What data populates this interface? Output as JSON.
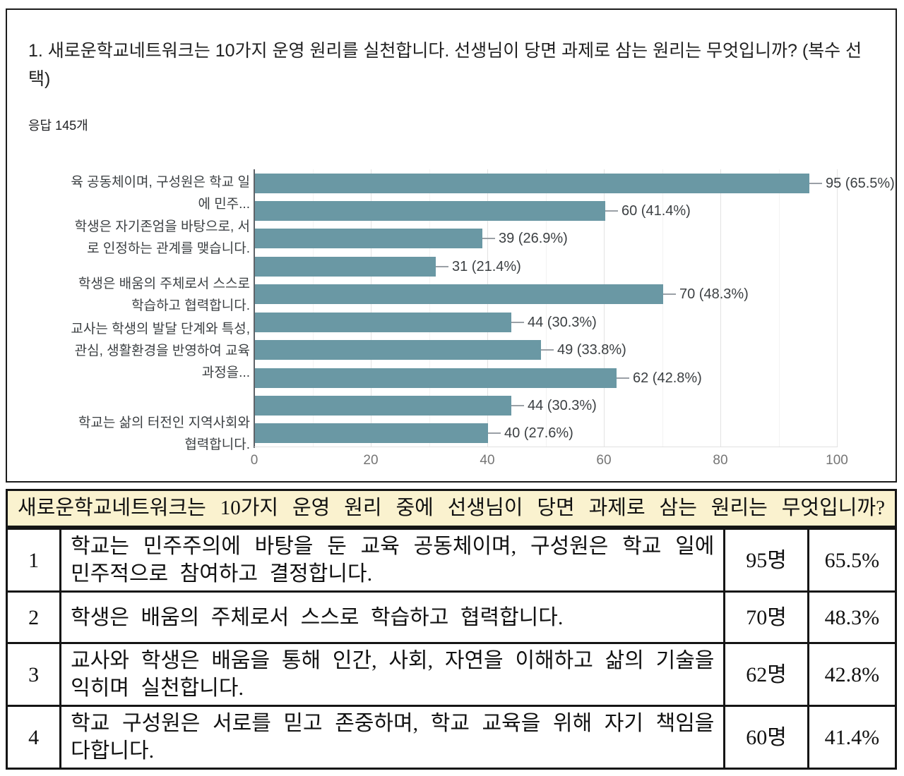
{
  "question": {
    "title": "1. 새로운학교네트워크는 10가지 운영 원리를 실천합니다. 선생님이 당면 과제로 삼는 원리는 무엇입니까? (복수 선택)",
    "response_count": "응답 145개"
  },
  "chart_data": {
    "type": "bar",
    "orientation": "horizontal",
    "title": "",
    "xlabel": "",
    "ylabel": "",
    "xlim": [
      0,
      100
    ],
    "grid": true,
    "bar_color": "#6A98A4",
    "values": [
      95,
      60,
      39,
      31,
      70,
      44,
      49,
      62,
      44,
      40
    ],
    "percents": [
      65.5,
      41.4,
      26.9,
      21.4,
      48.3,
      30.3,
      33.8,
      42.8,
      30.3,
      27.6
    ],
    "bar_labels": [
      "95 (65.5%)",
      "60 (41.4%)",
      "39 (26.9%)",
      "31 (21.4%)",
      "70 (48.3%)",
      "44 (30.3%)",
      "49 (33.8%)",
      "62 (42.8%)",
      "44 (30.3%)",
      "40 (27.6%)"
    ],
    "category_label_blocks": [
      "육 공동체이며, 구성원은 학교 일\n에 민주...",
      "학생은 자기존엄을 바탕으로, 서\n로 인정하는 관계를 맺습니다.",
      "학생은 배움의 주체로서 스스로\n학습하고 협력합니다.",
      "교사는 학생의 발달 단계와 특성,\n관심, 생활환경을 반영하여 교육\n과정을...",
      "학교는 삶의 터전인 지역사회와\n협력합니다."
    ],
    "x_ticks": [
      "0",
      "20",
      "40",
      "60",
      "80",
      "100"
    ]
  },
  "banner": {
    "text": "새로운학교네트워크는 10가지 운영 원리 중에 선생님이 당면 과제로 삼는 원리는 무엇입니까?"
  },
  "table": {
    "rows": [
      {
        "num": "1",
        "text": "학교는 민주주의에 바탕을 둔 교육 공동체이며, 구성원은 학교 일에 민주적으로 참여하고 결정합니다.",
        "count": "95명",
        "percent": "65.5%"
      },
      {
        "num": "2",
        "text": "학생은 배움의 주체로서 스스로 학습하고 협력합니다.",
        "count": "70명",
        "percent": "48.3%"
      },
      {
        "num": "3",
        "text": "교사와 학생은 배움을 통해 인간, 사회, 자연을 이해하고 삶의 기술을 익히며 실천합니다.",
        "count": "62명",
        "percent": "42.8%"
      },
      {
        "num": "4",
        "text": "학교 구성원은 서로를 믿고 존중하며, 학교 교육을 위해 자기 책임을 다합니다.",
        "count": "60명",
        "percent": "41.4%"
      }
    ]
  }
}
